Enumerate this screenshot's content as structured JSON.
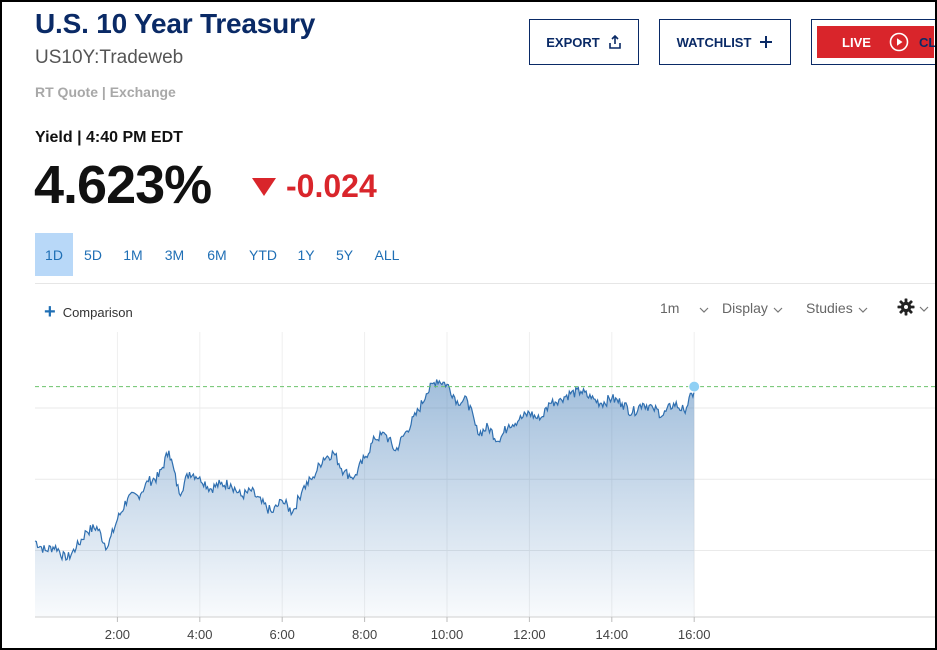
{
  "header": {
    "title": "U.S. 10 Year Treasury",
    "symbol": "US10Y:Tradeweb",
    "quote_source": "RT Quote | Exchange"
  },
  "toolbar": {
    "export_label": "EXPORT",
    "watchlist_label": "WATCHLIST",
    "live_label": "LIVE",
    "close_label_partial": "CL"
  },
  "quote": {
    "label": "Yield | 4:40 PM EDT",
    "price": "4.623%",
    "change": "-0.024",
    "change_direction": "down",
    "change_color": "#d9252b"
  },
  "ranges": {
    "items": [
      "1D",
      "5D",
      "1M",
      "3M",
      "6M",
      "YTD",
      "1Y",
      "5Y",
      "ALL"
    ],
    "active": "1D"
  },
  "chart_controls": {
    "comparison_label": "Comparison",
    "interval_label": "1m",
    "display_label": "Display",
    "studies_label": "Studies"
  },
  "colors": {
    "brand": "#0a2a66",
    "accent": "#1f6fb5",
    "line": "#2f6fb0",
    "negative": "#d9252b",
    "reference_line": "#6cc36c"
  },
  "chart_data": {
    "type": "area",
    "title": "",
    "xlabel": "",
    "ylabel": "",
    "x_ticks": [
      "2:00",
      "4:00",
      "6:00",
      "8:00",
      "10:00",
      "12:00",
      "14:00",
      "16:00"
    ],
    "x_range_hours": [
      0,
      18.5
    ],
    "ylim": [
      4.55,
      4.67
    ],
    "reference_value": 4.647,
    "grid_y_values": [
      4.638,
      4.608,
      4.578
    ],
    "series": [
      {
        "x": [
          0.0,
          0.25,
          0.5,
          0.75,
          1.0,
          1.25,
          1.5,
          1.75,
          2.0,
          2.25,
          2.5,
          2.75,
          3.0,
          3.25,
          3.5,
          3.75,
          4.0,
          4.25,
          4.5,
          4.75,
          5.0,
          5.25,
          5.5,
          5.75,
          6.0,
          6.25,
          6.5,
          6.75,
          7.0,
          7.25,
          7.5,
          7.75,
          8.0,
          8.25,
          8.5,
          8.75,
          9.0,
          9.25,
          9.5,
          9.75,
          10.0,
          10.25,
          10.5,
          10.75,
          11.0,
          11.25,
          11.5,
          11.75,
          12.0,
          12.25,
          12.5,
          12.75,
          13.0,
          13.25,
          13.5,
          13.75,
          14.0,
          14.25,
          14.5,
          14.75,
          15.0,
          15.25,
          15.5,
          15.75,
          16.0
        ],
        "y": [
          4.582,
          4.578,
          4.58,
          4.574,
          4.579,
          4.586,
          4.588,
          4.579,
          4.591,
          4.6,
          4.601,
          4.607,
          4.609,
          4.62,
          4.602,
          4.611,
          4.609,
          4.604,
          4.606,
          4.606,
          4.601,
          4.603,
          4.598,
          4.594,
          4.599,
          4.594,
          4.604,
          4.609,
          4.617,
          4.619,
          4.611,
          4.609,
          4.617,
          4.625,
          4.627,
          4.62,
          4.628,
          4.635,
          4.644,
          4.65,
          4.648,
          4.641,
          4.641,
          4.627,
          4.63,
          4.624,
          4.631,
          4.633,
          4.636,
          4.633,
          4.64,
          4.642,
          4.644,
          4.645,
          4.642,
          4.64,
          4.642,
          4.64,
          4.636,
          4.64,
          4.638,
          4.635,
          4.64,
          4.637,
          4.645
        ]
      }
    ]
  }
}
